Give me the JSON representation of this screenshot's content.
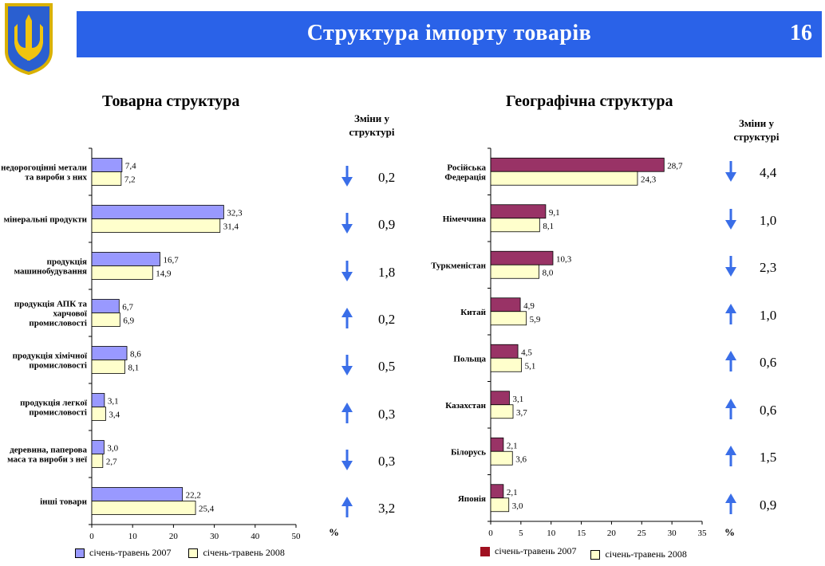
{
  "header": {
    "title": "Структура імпорту товарів",
    "page_number": "16"
  },
  "left": {
    "section_title": "Товарна структура",
    "changes_title": "Зміни у структурі",
    "unit_label": "%",
    "changes": [
      {
        "value": "0,2",
        "direction": "down"
      },
      {
        "value": "0,9",
        "direction": "down"
      },
      {
        "value": "1,8",
        "direction": "down"
      },
      {
        "value": "0,2",
        "direction": "up"
      },
      {
        "value": "0,5",
        "direction": "down"
      },
      {
        "value": "0,3",
        "direction": "up"
      },
      {
        "value": "0,3",
        "direction": "down"
      },
      {
        "value": "3,2",
        "direction": "up"
      }
    ]
  },
  "right": {
    "section_title": "Географічна структура",
    "changes_title": "Зміни у структурі",
    "unit_label": "%",
    "changes": [
      {
        "value": "4,4",
        "direction": "down"
      },
      {
        "value": "1,0",
        "direction": "down"
      },
      {
        "value": "2,3",
        "direction": "down"
      },
      {
        "value": "1,0",
        "direction": "up"
      },
      {
        "value": "0,6",
        "direction": "up"
      },
      {
        "value": "0,6",
        "direction": "up"
      },
      {
        "value": "1,5",
        "direction": "up"
      },
      {
        "value": "0,9",
        "direction": "up"
      }
    ]
  },
  "colors": {
    "header_bg": "#2a62e8",
    "arrow": "#3a6ee8",
    "left_2007": "#9999ff",
    "left_2008": "#ffffcc",
    "right_2007": "#993366",
    "right_2008": "#ffffcc"
  },
  "chart_data": [
    {
      "type": "bar",
      "orientation": "horizontal",
      "title": "Товарна структура",
      "categories": [
        "недорогоцінні метали та вироби з них",
        "мінеральні продукти",
        "продукція машинобудування",
        "продукція АПК та харчової промисловості",
        "продукція хімічної промисловості",
        "продукція легкої промисловості",
        "деревина, паперова маса та вироби з неї",
        "інші товари"
      ],
      "series": [
        {
          "name": "січень-травень 2007",
          "values": [
            7.4,
            32.3,
            16.7,
            6.7,
            8.6,
            3.1,
            3.0,
            22.2
          ],
          "labels": [
            "7,4",
            "32,3",
            "16,7",
            "6,7",
            "8,6",
            "3,1",
            "3,0",
            "22,2"
          ]
        },
        {
          "name": "січень-травень 2008",
          "values": [
            7.2,
            31.4,
            14.9,
            6.9,
            8.1,
            3.4,
            2.7,
            25.4
          ],
          "labels": [
            "7,2",
            "31,4",
            "14,9",
            "6,9",
            "8,1",
            "3,4",
            "2,7",
            "25,4"
          ]
        }
      ],
      "xlim": [
        0,
        50
      ],
      "xticks": [
        "0",
        "10",
        "20",
        "30",
        "40",
        "50"
      ],
      "legend_position": "bottom"
    },
    {
      "type": "bar",
      "orientation": "horizontal",
      "title": "Географічна структура",
      "categories": [
        "Російська Федерація",
        "Німеччина",
        "Туркменістан",
        "Китай",
        "Польща",
        "Казахстан",
        "Білорусь",
        "Японія"
      ],
      "series": [
        {
          "name": "січень-травень 2007",
          "values": [
            28.7,
            9.1,
            10.3,
            4.9,
            4.5,
            3.1,
            2.1,
            2.1
          ],
          "labels": [
            "28,7",
            "9,1",
            "10,3",
            "4,9",
            "4,5",
            "3,1",
            "2,1",
            "2,1"
          ]
        },
        {
          "name": "січень-травень 2008",
          "values": [
            24.3,
            8.1,
            8.0,
            5.9,
            5.1,
            3.7,
            3.6,
            3.0
          ],
          "labels": [
            "24,3",
            "8,1",
            "8,0",
            "5,9",
            "5,1",
            "3,7",
            "3,6",
            "3,0"
          ]
        }
      ],
      "xlim": [
        0,
        35
      ],
      "xticks": [
        "0",
        "5",
        "10",
        "15",
        "20",
        "25",
        "30",
        "35"
      ],
      "legend_position": "bottom"
    }
  ]
}
